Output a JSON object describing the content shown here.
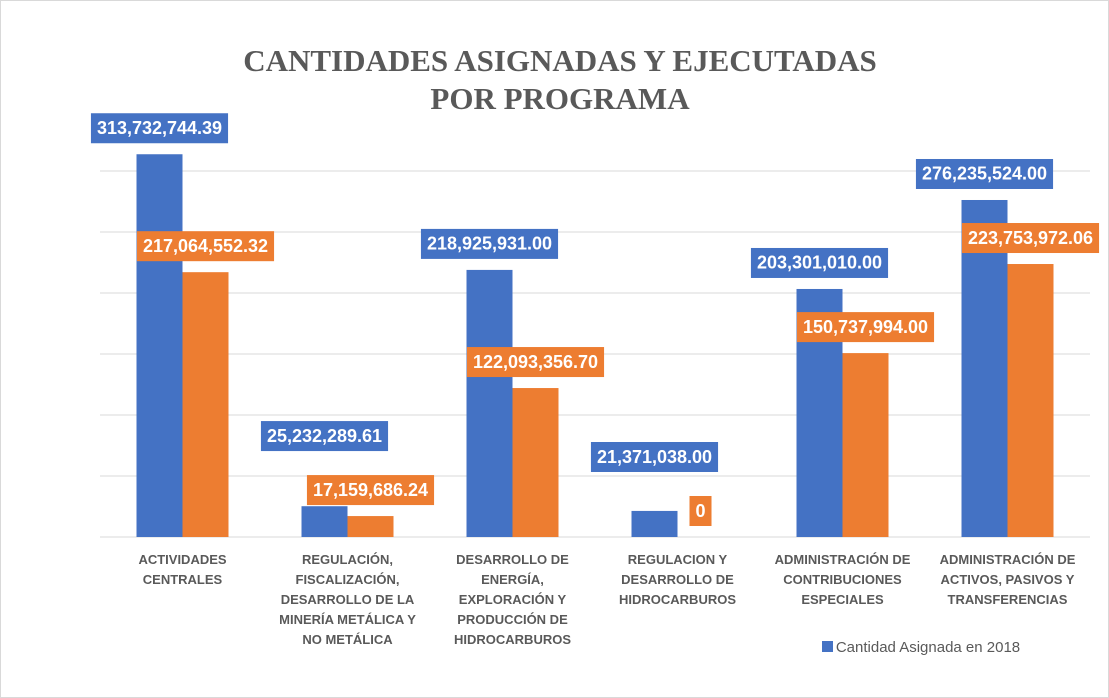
{
  "chart_data": {
    "type": "bar",
    "title": "CANTIDADES ASIGNADAS Y EJECUTADAS POR PROGRAMA",
    "categories": [
      "ACTIVIDADES CENTRALES",
      "REGULACIÓN, FISCALIZACIÓN, DESARROLLO DE LA MINERÍA METÁLICA Y NO METÁLICA",
      "DESARROLLO DE ENERGÍA, EXPLORACIÓN Y PRODUCCIÓN DE HIDROCARBUROS",
      "REGULACION Y DESARROLLO DE HIDROCARBUROS",
      "ADMINISTRACIÓN DE CONTRIBUCIONES ESPECIALES",
      "ADMINISTRACIÓN DE ACTIVOS, PASIVOS Y TRANSFERENCIAS"
    ],
    "series": [
      {
        "name": "Cantidad Asignada en 2018",
        "color": "#4472c4",
        "values": [
          313732744.39,
          25232289.61,
          218925931.0,
          21371038.0,
          203301010.0,
          276235524.0
        ],
        "value_labels": [
          "313,732,744.39",
          "25,232,289.61",
          "218,925,931.00",
          "21,371,038.00",
          "203,301,010.00",
          "276,235,524.00"
        ]
      },
      {
        "color": "#ed7d31",
        "values": [
          217064552.32,
          17159686.24,
          122093356.7,
          0,
          150737994.0,
          223753972.06
        ],
        "value_labels": [
          "217,064,552.32",
          "17,159,686.24",
          "122,093,356.70",
          "0",
          "150,737,994.00",
          "223,753,972.06"
        ]
      }
    ],
    "ylim": [
      0,
      350000000
    ],
    "yticks": [
      0,
      50000000,
      100000000,
      150000000,
      200000000,
      250000000,
      300000000
    ],
    "grid": true
  }
}
